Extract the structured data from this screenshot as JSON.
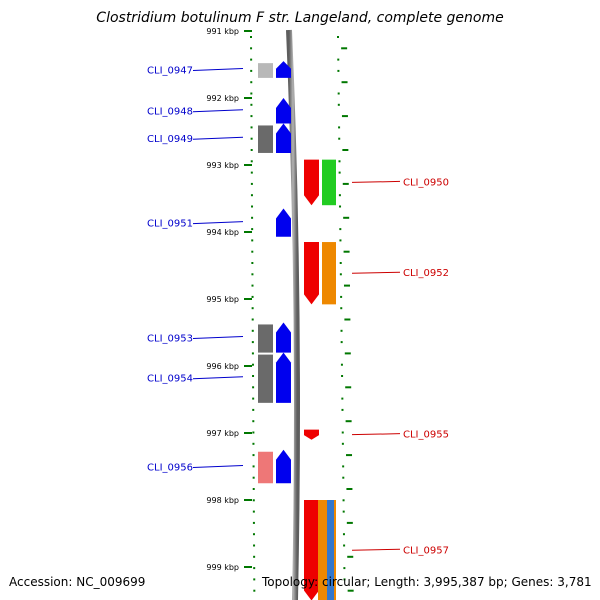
{
  "title": "Clostridium botulinum F str. Langeland, complete genome",
  "footer": {
    "accession": "Accession: NC_009699",
    "topology": "Topology: circular; Length: 3,995,387 bp; Genes: 3,781"
  },
  "colors": {
    "forward_label": "#0000cc",
    "reverse_label": "#cc0000",
    "ruler": "#007700",
    "backbone": "#8c8c8c"
  },
  "ruler_ticks": [
    {
      "label": "991 kbp",
      "kbp": 991
    },
    {
      "label": "992 kbp",
      "kbp": 992
    },
    {
      "label": "993 kbp",
      "kbp": 993
    },
    {
      "label": "994 kbp",
      "kbp": 994
    },
    {
      "label": "995 kbp",
      "kbp": 995
    },
    {
      "label": "996 kbp",
      "kbp": 996
    },
    {
      "label": "997 kbp",
      "kbp": 997
    },
    {
      "label": "998 kbp",
      "kbp": 998
    },
    {
      "label": "999 kbp",
      "kbp": 999
    }
  ],
  "genes": [
    {
      "name": "CLI_0947",
      "strand": "+",
      "start_kbp": 991.45,
      "end_kbp": 991.7,
      "color": "#0000ee",
      "cog_color": "#b8b8b8"
    },
    {
      "name": "CLI_0948",
      "strand": "+",
      "start_kbp": 992.0,
      "end_kbp": 992.38,
      "color": "#0000ee",
      "cog_color": null
    },
    {
      "name": "CLI_0949",
      "strand": "+",
      "start_kbp": 992.38,
      "end_kbp": 992.82,
      "color": "#0000ee",
      "cog_color": "#6a6a6a"
    },
    {
      "name": "CLI_0950",
      "strand": "-",
      "start_kbp": 992.92,
      "end_kbp": 993.6,
      "color": "#ee0000",
      "cog_color": "#22cc22"
    },
    {
      "name": "CLI_0951",
      "strand": "+",
      "start_kbp": 993.65,
      "end_kbp": 994.07,
      "color": "#0000ee",
      "cog_color": null
    },
    {
      "name": "CLI_0952",
      "strand": "-",
      "start_kbp": 994.15,
      "end_kbp": 995.08,
      "color": "#ee0000",
      "cog_color": "#ee8800"
    },
    {
      "name": "CLI_0953",
      "strand": "+",
      "start_kbp": 995.35,
      "end_kbp": 995.8,
      "color": "#0000ee",
      "cog_color": "#6a6a6a"
    },
    {
      "name": "CLI_0954",
      "strand": "+",
      "start_kbp": 995.8,
      "end_kbp": 996.55,
      "color": "#0000ee",
      "cog_color": "#6a6a6a"
    },
    {
      "name": "CLI_0955",
      "strand": "-",
      "start_kbp": 996.95,
      "end_kbp": 997.1,
      "color": "#ee0000",
      "cog_color": null
    },
    {
      "name": "CLI_0956",
      "strand": "+",
      "start_kbp": 997.25,
      "end_kbp": 997.75,
      "color": "#0000ee",
      "cog_color": "#ee7777"
    },
    {
      "name": "CLI_0957",
      "strand": "-",
      "start_kbp": 998.0,
      "end_kbp": 999.5,
      "color": "#ee0000",
      "cog_color": "#ee8800",
      "cog_color2": "#3377cc"
    }
  ]
}
